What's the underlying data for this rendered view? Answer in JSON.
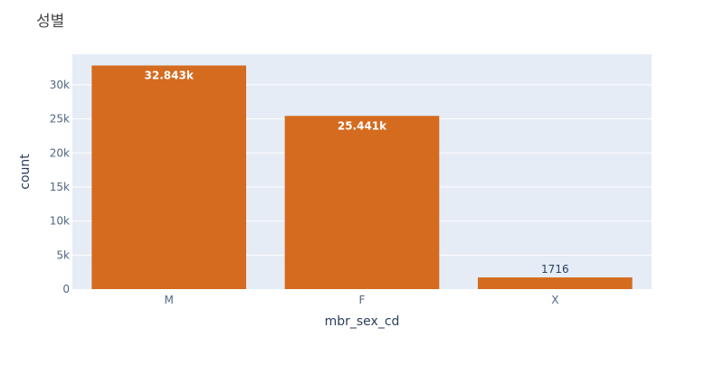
{
  "chart_data": {
    "type": "bar",
    "title": "성별",
    "xlabel": "mbr_sex_cd",
    "ylabel": "count",
    "categories": [
      "M",
      "F",
      "X"
    ],
    "values": [
      32843,
      25441,
      1716
    ],
    "data_labels": [
      "32.843k",
      "25.441k",
      "1716"
    ],
    "ylim": [
      0,
      34500
    ],
    "y_ticks": [
      0,
      5000,
      10000,
      15000,
      20000,
      25000,
      30000
    ],
    "y_tick_labels": [
      "0",
      "5k",
      "10k",
      "15k",
      "20k",
      "25k",
      "30k"
    ],
    "bar_color": "#d46b1f",
    "plot_background": "#e5ecf6",
    "grid": true,
    "legend": "none"
  }
}
